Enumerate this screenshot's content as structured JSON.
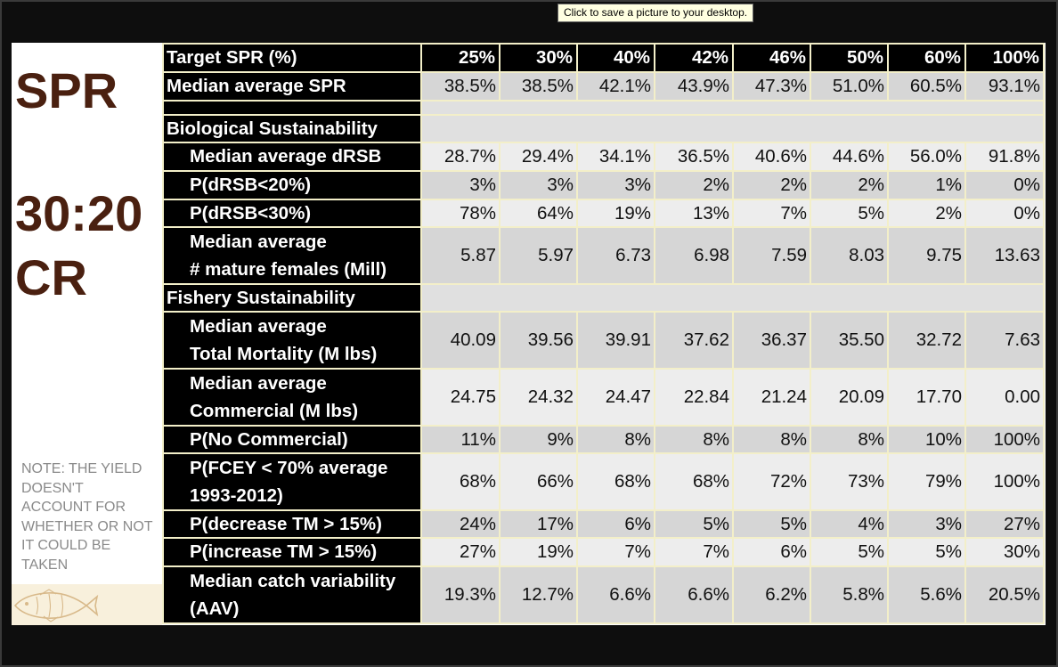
{
  "tooltip": "Click to save a picture to your desktop.",
  "side": {
    "spr": "SPR",
    "ratio": "30:20",
    "cr": "CR",
    "note": "NOTE: THE YIELD DOESN'T ACCOUNT FOR WHETHER OR NOT IT COULD BE TAKEN"
  },
  "header": {
    "label": "Target SPR (%)",
    "targets": [
      "25%",
      "30%",
      "40%",
      "42%",
      "46%",
      "50%",
      "60%",
      "100%"
    ]
  },
  "median_spr": {
    "label": "Median average SPR",
    "values": [
      "38.5%",
      "38.5%",
      "42.1%",
      "43.9%",
      "47.3%",
      "51.0%",
      "60.5%",
      "93.1%"
    ]
  },
  "sections": {
    "biological": "Biological Sustainability",
    "fishery": "Fishery Sustainability"
  },
  "rows": {
    "drsb": {
      "label": "Median average dRSB",
      "values": [
        "28.7%",
        "29.4%",
        "34.1%",
        "36.5%",
        "40.6%",
        "44.6%",
        "56.0%",
        "91.8%"
      ]
    },
    "drsb20": {
      "label": "P(dRSB<20%)",
      "values": [
        "3%",
        "3%",
        "3%",
        "2%",
        "2%",
        "2%",
        "1%",
        "0%"
      ]
    },
    "drsb30": {
      "label": "P(dRSB<30%)",
      "values": [
        "78%",
        "64%",
        "19%",
        "13%",
        "7%",
        "5%",
        "2%",
        "0%"
      ]
    },
    "females": {
      "label1": "Median average",
      "label2": "# mature females (Mill)",
      "values": [
        "5.87",
        "5.97",
        "6.73",
        "6.98",
        "7.59",
        "8.03",
        "9.75",
        "13.63"
      ]
    },
    "total_mort": {
      "label1": "Median average",
      "label2": "Total Mortality (M lbs)",
      "values": [
        "40.09",
        "39.56",
        "39.91",
        "37.62",
        "36.37",
        "35.50",
        "32.72",
        "7.63"
      ]
    },
    "commercial": {
      "label1": "Median average",
      "label2": "Commercial (M lbs)",
      "values": [
        "24.75",
        "24.32",
        "24.47",
        "22.84",
        "21.24",
        "20.09",
        "17.70",
        "0.00"
      ]
    },
    "no_comm": {
      "label": "P(No Commercial)",
      "values": [
        "11%",
        "9%",
        "8%",
        "8%",
        "8%",
        "8%",
        "10%",
        "100%"
      ]
    },
    "fcey": {
      "label1": "P(FCEY < 70% average",
      "label2": "1993-2012)",
      "values": [
        "68%",
        "66%",
        "68%",
        "68%",
        "72%",
        "73%",
        "79%",
        "100%"
      ]
    },
    "dec_tm": {
      "label": "P(decrease TM > 15%)",
      "values": [
        "24%",
        "17%",
        "6%",
        "5%",
        "5%",
        "4%",
        "3%",
        "27%"
      ]
    },
    "inc_tm": {
      "label": "P(increase TM > 15%)",
      "values": [
        "27%",
        "19%",
        "7%",
        "7%",
        "6%",
        "5%",
        "5%",
        "30%"
      ]
    },
    "aav": {
      "label1": "Median catch variability",
      "label2": "(AAV)",
      "values": [
        "19.3%",
        "12.7%",
        "6.6%",
        "6.6%",
        "6.2%",
        "5.8%",
        "5.6%",
        "20.5%"
      ]
    }
  }
}
